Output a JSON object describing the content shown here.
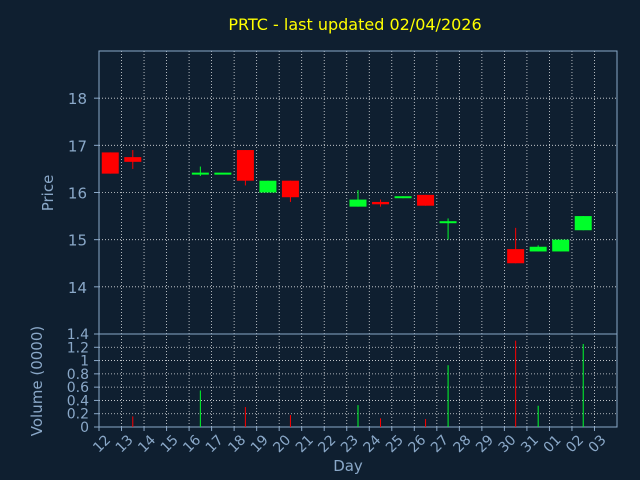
{
  "chart_data": [
    {
      "type": "candlestick",
      "title": "PRTC - last updated 02/04/2026",
      "ylabel": "Price",
      "ylim": [
        13.0,
        19.0
      ],
      "yticks": [
        "14",
        "15",
        "16",
        "17",
        "18"
      ],
      "grid": true,
      "candles": [
        {
          "x": "12",
          "open": 16.85,
          "close": 16.4,
          "high": 16.85,
          "low": 16.4
        },
        {
          "x": "13",
          "open": 16.75,
          "close": 16.65,
          "high": 16.9,
          "low": 16.5
        },
        {
          "x": "16",
          "open": 16.4,
          "close": 16.4,
          "high": 16.55,
          "low": 16.35
        },
        {
          "x": "17",
          "open": 16.4,
          "close": 16.4,
          "high": 16.4,
          "low": 16.4
        },
        {
          "x": "18",
          "open": 16.9,
          "close": 16.25,
          "high": 16.9,
          "low": 16.15
        },
        {
          "x": "19",
          "open": 16.0,
          "close": 16.25,
          "high": 16.25,
          "low": 16.0
        },
        {
          "x": "20",
          "open": 16.25,
          "close": 15.9,
          "high": 16.25,
          "low": 15.8
        },
        {
          "x": "23",
          "open": 15.7,
          "close": 15.85,
          "high": 16.05,
          "low": 15.7
        },
        {
          "x": "24",
          "open": 15.8,
          "close": 15.75,
          "high": 15.85,
          "low": 15.7
        },
        {
          "x": "25",
          "open": 15.9,
          "close": 15.9,
          "high": 15.92,
          "low": 15.88
        },
        {
          "x": "26",
          "open": 15.95,
          "close": 15.72,
          "high": 15.95,
          "low": 15.72
        },
        {
          "x": "27",
          "open": 15.37,
          "close": 15.37,
          "high": 15.45,
          "low": 15.0
        },
        {
          "x": "30",
          "open": 14.8,
          "close": 14.5,
          "high": 15.25,
          "low": 14.5
        },
        {
          "x": "31",
          "open": 14.75,
          "close": 14.85,
          "high": 14.88,
          "low": 14.75
        },
        {
          "x": "01",
          "open": 14.75,
          "close": 15.0,
          "high": 15.0,
          "low": 14.75
        },
        {
          "x": "02",
          "open": 15.2,
          "close": 15.5,
          "high": 15.5,
          "low": 15.2
        }
      ],
      "colors": {
        "up": "#00ff2a",
        "down": "#ff0000",
        "axis": "#8aa8c8",
        "title": "#ffff00",
        "grid": "#ffffff",
        "background": "#0f1f30"
      }
    },
    {
      "type": "bar",
      "xlabel": "Day",
      "ylabel": "Volume (0000)",
      "ylim": [
        0,
        1.4
      ],
      "yticks": [
        "0",
        "0.2",
        "0.4",
        "0.6",
        "0.8",
        "1",
        "1.2",
        "1.4"
      ],
      "categories": [
        "12",
        "13",
        "14",
        "15",
        "16",
        "17",
        "18",
        "19",
        "20",
        "21",
        "22",
        "23",
        "24",
        "25",
        "26",
        "27",
        "28",
        "29",
        "30",
        "31",
        "01",
        "02",
        "03"
      ],
      "values": [
        0,
        0.16,
        0,
        0,
        0.55,
        0,
        0.3,
        0,
        0.18,
        0,
        0,
        0.33,
        0.13,
        0,
        0.12,
        0.93,
        0,
        0,
        1.3,
        0.32,
        0,
        1.25,
        0
      ],
      "bar_direction": [
        "",
        "down",
        "",
        "",
        "up",
        "",
        "down",
        "",
        "down",
        "",
        "",
        "up",
        "down",
        "",
        "down",
        "up",
        "",
        "",
        "down",
        "up",
        "",
        "up",
        ""
      ]
    }
  ]
}
